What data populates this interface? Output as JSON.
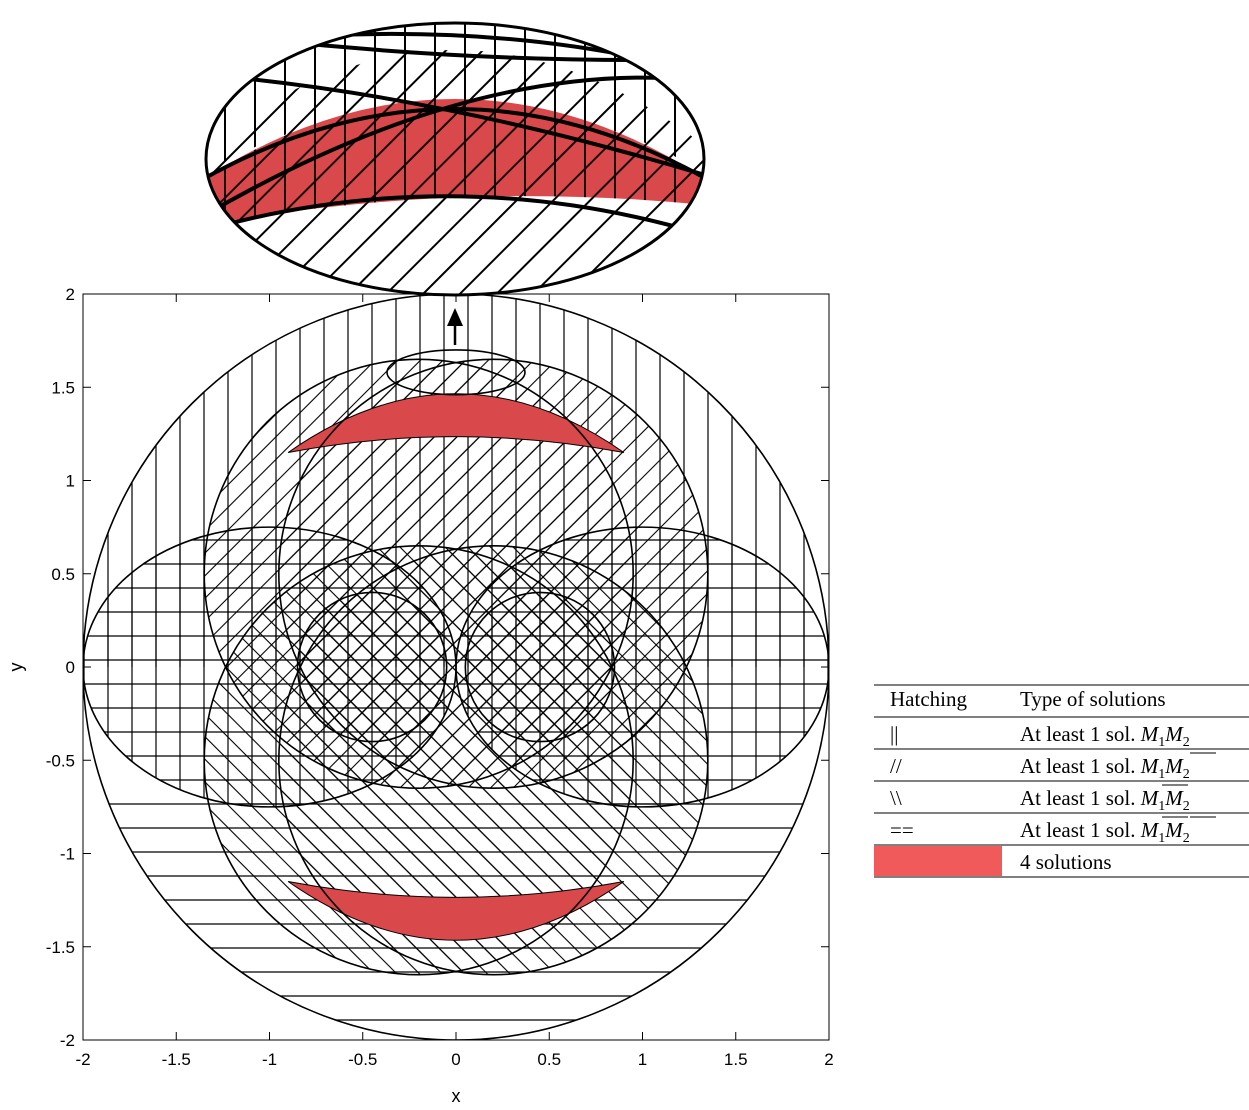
{
  "chart_data": {
    "type": "scatter",
    "title": "",
    "xlabel": "x",
    "ylabel": "y",
    "xlim": [
      -2,
      2
    ],
    "ylim": [
      -2,
      2
    ],
    "xticks": [
      "-2",
      "-1.5",
      "-1",
      "-0.5",
      "0",
      "0.5",
      "1",
      "1.5",
      "2"
    ],
    "yticks": [
      "2",
      "1.5",
      "1",
      "0.5",
      "0",
      "-0.5",
      "-1",
      "-1.5",
      "-2"
    ],
    "grid": false,
    "regions": [
      {
        "name": "outer circle",
        "cx": 0,
        "cy": 0,
        "r": 2
      },
      {
        "name": "upper-left circle",
        "cx": -0.2,
        "cy": 0.5,
        "r": 1.15
      },
      {
        "name": "upper-right circle",
        "cx": 0.2,
        "cy": 0.5,
        "r": 1.15
      },
      {
        "name": "lower-left circle",
        "cx": -0.2,
        "cy": -0.5,
        "r": 1.15
      },
      {
        "name": "lower-right circle",
        "cx": 0.2,
        "cy": -0.5,
        "r": 1.15
      },
      {
        "name": "left inner circle",
        "cx": -0.45,
        "cy": 0,
        "r": 0.4
      },
      {
        "name": "right inner circle",
        "cx": 0.45,
        "cy": 0,
        "r": 0.4
      },
      {
        "name": "left oval",
        "cx": -1.0,
        "cy": 0,
        "rx": 1.0,
        "ry": 0.75
      },
      {
        "name": "right oval",
        "cx": 1.0,
        "cy": 0,
        "rx": 1.0,
        "ry": 0.75
      }
    ],
    "four_solution_regions": [
      {
        "location": "top",
        "x_range": [
          -0.9,
          0.9
        ],
        "y_range": [
          1.2,
          1.6
        ]
      },
      {
        "location": "bottom",
        "x_range": [
          -0.9,
          0.9
        ],
        "y_range": [
          -1.6,
          -1.2
        ]
      }
    ],
    "zoom_region": {
      "cx": 0,
      "cy": 1.58,
      "rx": 0.37,
      "ry": 0.12
    }
  },
  "legend": {
    "header": {
      "hatching": "Hatching",
      "type": "Type of solutions"
    },
    "rows": [
      {
        "symbol": "||",
        "text": "At least 1 sol.",
        "math": "M1M2",
        "bars": "none"
      },
      {
        "symbol": "//",
        "text": "At least 1 sol.",
        "math": "M1M2",
        "bars": "second"
      },
      {
        "symbol": "\\\\",
        "text": "At least 1 sol.",
        "math": "M1M2",
        "bars": "first"
      },
      {
        "symbol": "==",
        "text": "At least 1 sol.",
        "math": "M1M2",
        "bars": "both"
      },
      {
        "symbol": "",
        "text": "4 solutions",
        "math": "",
        "bars": "none"
      }
    ]
  },
  "colors": {
    "four_solutions": "#d9484b",
    "legend_swatch": "#f05a5a",
    "line": "#000000"
  }
}
